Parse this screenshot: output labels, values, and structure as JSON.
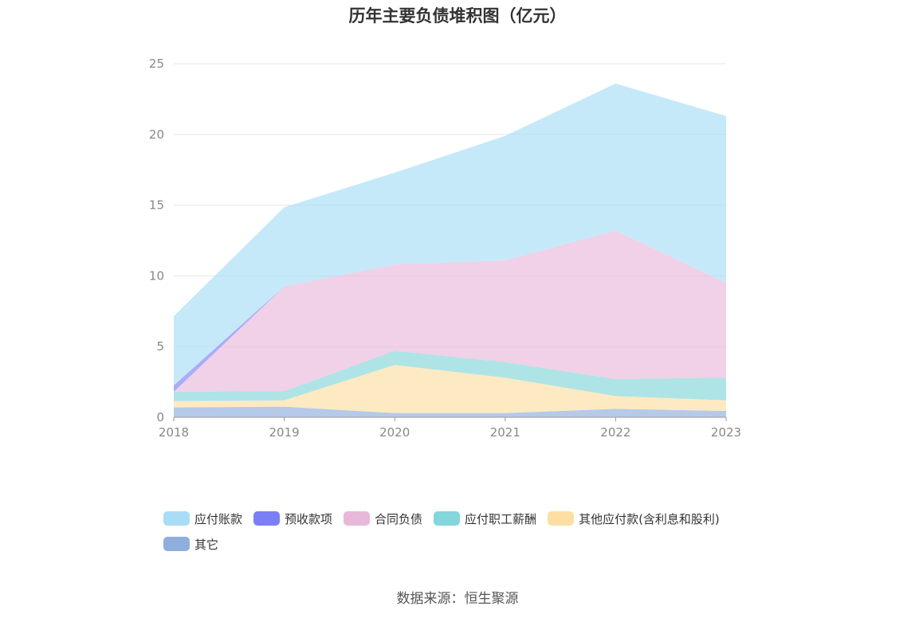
{
  "title": "历年主要负债堆积图（亿元）",
  "source": "数据来源：恒生聚源",
  "chart_data": {
    "type": "area",
    "stacked": true,
    "title": "历年主要负债堆积图（亿元）",
    "x": [
      "2018",
      "2019",
      "2020",
      "2021",
      "2022",
      "2023"
    ],
    "ylim": [
      0,
      25
    ],
    "yticks": [
      0,
      5,
      10,
      15,
      20,
      25
    ],
    "grid": true,
    "legend_position": "bottom",
    "series": [
      {
        "name": "其它",
        "color": "#8eaedd",
        "values": [
          0.7,
          0.75,
          0.3,
          0.3,
          0.6,
          0.45
        ]
      },
      {
        "name": "其他应付款(含利息和股利)",
        "color": "#fddfa2",
        "values": [
          0.45,
          0.45,
          3.4,
          2.5,
          0.9,
          0.75
        ]
      },
      {
        "name": "应付职工薪酬",
        "color": "#83d6d9",
        "values": [
          0.65,
          0.65,
          1.0,
          1.1,
          1.2,
          1.6
        ]
      },
      {
        "name": "合同负债",
        "color": "#e8b8da",
        "values": [
          0.0,
          7.4,
          6.1,
          7.2,
          10.5,
          6.7
        ]
      },
      {
        "name": "预收款项",
        "color": "#7b7ff5",
        "values": [
          0.45,
          0.0,
          0.0,
          0.0,
          0.0,
          0.0
        ]
      },
      {
        "name": "应付账款",
        "color": "#a8ddf7",
        "values": [
          4.9,
          5.6,
          6.5,
          8.8,
          10.4,
          11.8
        ]
      }
    ],
    "legend_order": [
      "应付账款",
      "预收款项",
      "合同负债",
      "应付职工薪酬",
      "其他应付款(含利息和股利)",
      "其它"
    ]
  }
}
